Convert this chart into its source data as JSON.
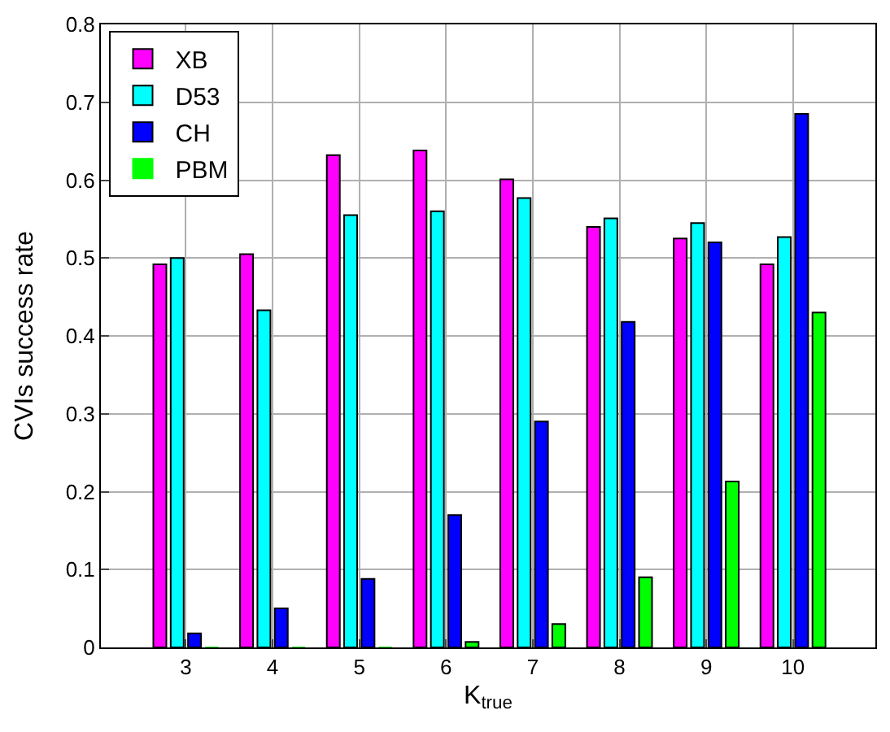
{
  "chart_data": {
    "type": "bar",
    "xlabel": "K$_{true}$",
    "ylabel": "CVIs success rate",
    "categories": [
      "3",
      "4",
      "5",
      "6",
      "7",
      "8",
      "9",
      "10"
    ],
    "series": [
      {
        "name": "XB",
        "color": "#ff00ff",
        "values": [
          0.492,
          0.505,
          0.632,
          0.638,
          0.601,
          0.54,
          0.525,
          0.492
        ]
      },
      {
        "name": "D53",
        "color": "#00ffff",
        "values": [
          0.5,
          0.433,
          0.555,
          0.56,
          0.577,
          0.551,
          0.545,
          0.527
        ]
      },
      {
        "name": "CH",
        "color": "#0000ff",
        "values": [
          0.018,
          0.05,
          0.088,
          0.17,
          0.29,
          0.418,
          0.52,
          0.685
        ]
      },
      {
        "name": "PBM",
        "color": "#00ff00",
        "values": [
          0,
          0,
          0,
          0.007,
          0.03,
          0.09,
          0.213,
          0.43
        ]
      }
    ],
    "ylim": [
      0,
      0.8
    ],
    "yticks": [
      0,
      0.1,
      0.2,
      0.3,
      0.4,
      0.5,
      0.6,
      0.7,
      0.8
    ],
    "grid": true,
    "legend": "top left"
  }
}
